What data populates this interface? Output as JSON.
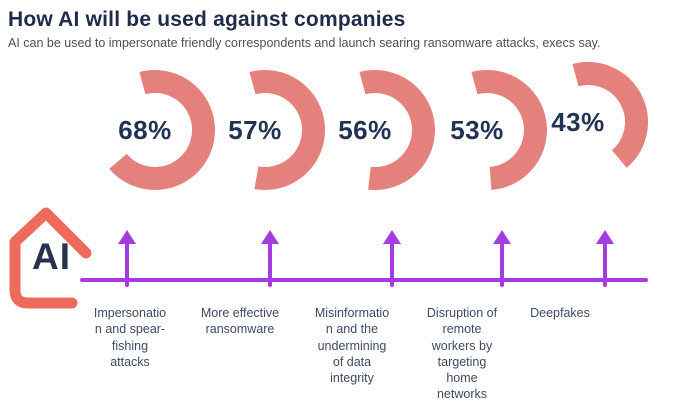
{
  "header": {
    "title": "How AI will be used against companies",
    "subtitle": "AI can be used to impersonate friendly correspondents and launch searing ransomware attacks, execs say."
  },
  "logo": {
    "text": "AI"
  },
  "chart_data": {
    "type": "pie",
    "variant": "partial-donut-arcs",
    "title": "How AI will be used against companies",
    "subtitle": "AI can be used to impersonate friendly correspondents and launch searing ransomware attacks, execs say.",
    "unit": "%",
    "categories": [
      "Impersonation and spear-fishing attacks",
      "More effective ransomware",
      "Misinformation and the undermining of data integrity",
      "Disruption of remote workers by targeting home networks",
      "Deepfakes"
    ],
    "values": [
      68,
      57,
      56,
      53,
      43
    ],
    "value_labels": [
      "68%",
      "57%",
      "56%",
      "53%",
      "43%"
    ],
    "legend_position": "none",
    "grid": false
  },
  "items": [
    {
      "value_label": "68%",
      "label_wrapped": "Impersonatio\nn and spear-\nfishing\nattacks"
    },
    {
      "value_label": "57%",
      "label_wrapped": "More effective\nransomware"
    },
    {
      "value_label": "56%",
      "label_wrapped": "Misinformatio\nn and the\nundermining\nof data\nintegrity"
    },
    {
      "value_label": "53%",
      "label_wrapped": "Disruption of\nremote\nworkers by\ntargeting\nhome\nnetworks"
    },
    {
      "value_label": "43%",
      "label_wrapped": "Deepfakes"
    }
  ],
  "colors": {
    "arc_coral": "#e4817d",
    "house_coral": "#ee6a5d",
    "navy": "#223254",
    "title_navy": "#1f2b4a",
    "subtitle_gray": "#4f4f4f",
    "label_slate": "#3d4a63",
    "axis_purple": "#a43ce0"
  }
}
